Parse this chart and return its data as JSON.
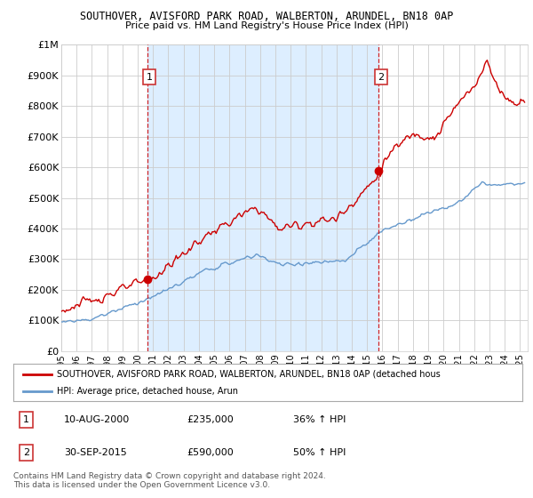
{
  "title1": "SOUTHOVER, AVISFORD PARK ROAD, WALBERTON, ARUNDEL, BN18 0AP",
  "title2": "Price paid vs. HM Land Registry's House Price Index (HPI)",
  "ylim": [
    0,
    1000000
  ],
  "yticks": [
    0,
    100000,
    200000,
    300000,
    400000,
    500000,
    600000,
    700000,
    800000,
    900000,
    1000000
  ],
  "ytick_labels": [
    "£0",
    "£100K",
    "£200K",
    "£300K",
    "£400K",
    "£500K",
    "£600K",
    "£700K",
    "£800K",
    "£900K",
    "£1M"
  ],
  "background_color": "#ffffff",
  "plot_bg_color": "#ffffff",
  "shade_color": "#ddeeff",
  "grid_color": "#cccccc",
  "red_color": "#cc0000",
  "blue_color": "#6699cc",
  "point1_x": 2000.61,
  "point1_y": 235000,
  "point2_x": 2015.75,
  "point2_y": 590000,
  "point1_label": "1",
  "point2_label": "2",
  "legend_line1": "SOUTHOVER, AVISFORD PARK ROAD, WALBERTON, ARUNDEL, BN18 0AP (detached hous",
  "legend_line2": "HPI: Average price, detached house, Arun",
  "table_row1": [
    "1",
    "10-AUG-2000",
    "£235,000",
    "36% ↑ HPI"
  ],
  "table_row2": [
    "2",
    "30-SEP-2015",
    "£590,000",
    "50% ↑ HPI"
  ],
  "footnote": "Contains HM Land Registry data © Crown copyright and database right 2024.\nThis data is licensed under the Open Government Licence v3.0.",
  "xmin": 1995,
  "xmax": 2025.5
}
